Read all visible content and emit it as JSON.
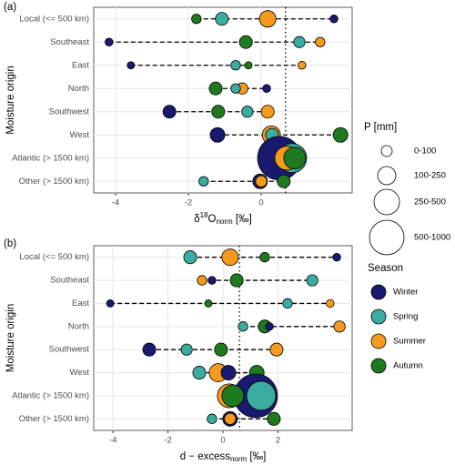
{
  "chart_data": [
    {
      "type": "dot",
      "panel": "(a)",
      "y_label": "Moisture origin",
      "x_label": {
        "prefix": "δ",
        "sup": "18",
        "main": "O",
        "sub": "norm",
        "suffix": " [‰]"
      },
      "categories": [
        "Local (<= 500 km)",
        "Southeast",
        "East",
        "North",
        "Southwest",
        "West",
        "Atlantic (> 1500 km)",
        "Other (> 1500 km)"
      ],
      "xlim": [
        -4.6,
        2.5
      ],
      "xticks": [
        -4,
        -2,
        0
      ],
      "vline": 0.67,
      "grid": true,
      "series": [
        {
          "name": "Winter",
          "color": "#191970",
          "values": [
            2.0,
            -4.18,
            -3.58,
            0.15,
            -2.52,
            -1.2,
            0.5,
            -0.03
          ],
          "sizes": [
            5,
            5,
            3,
            5,
            50,
            75,
            1300,
            75
          ]
        },
        {
          "name": "Spring",
          "color": "#3aada0",
          "values": [
            -1.08,
            1.05,
            -0.7,
            -0.7,
            -0.38,
            0.3,
            0.85,
            -1.58
          ],
          "sizes": [
            50,
            30,
            15,
            15,
            30,
            50,
            500,
            15
          ]
        },
        {
          "name": "Summer",
          "color": "#f59a1f",
          "values": [
            0.18,
            1.62,
            1.12,
            -0.52,
            0.18,
            0.28,
            0.7,
            0.0
          ],
          "sizes": [
            110,
            15,
            5,
            30,
            50,
            145,
            300,
            30
          ]
        },
        {
          "name": "Autumn",
          "color": "#1f7a1f",
          "values": [
            -1.78,
            -0.42,
            -0.35,
            -1.25,
            -1.18,
            2.18,
            0.92,
            0.62
          ],
          "sizes": [
            15,
            50,
            3,
            50,
            50,
            75,
            240,
            50
          ]
        }
      ],
      "size_legend": {
        "title": "P [mm]",
        "labels": [
          "0-100",
          "100-250",
          "250-500",
          "500-1000"
        ]
      }
    },
    {
      "type": "dot",
      "panel": "(b)",
      "y_label": "Moisture origin",
      "x_label": {
        "main": "d − excess",
        "sub": "norm",
        "suffix": " [‰]"
      },
      "categories": [
        "Local (<= 500 km)",
        "Southeast",
        "East",
        "North",
        "Southwest",
        "West",
        "Atlantic (> 1500 km)",
        "Other (> 1500 km)"
      ],
      "xlim": [
        -4.7,
        4.7
      ],
      "xticks": [
        -4,
        -2,
        0,
        2
      ],
      "vline": 0.6,
      "grid": true,
      "series": [
        {
          "name": "Winter",
          "color": "#191970",
          "values": [
            4.14,
            -0.4,
            -4.1,
            1.69,
            -2.68,
            0.2,
            1.19,
            0.26
          ],
          "sizes": [
            5,
            5,
            3,
            5,
            50,
            75,
            1300,
            75
          ]
        },
        {
          "name": "Spring",
          "color": "#3aada0",
          "values": [
            -1.19,
            3.25,
            2.35,
            0.73,
            -1.32,
            -0.86,
            1.39,
            -0.4
          ],
          "sizes": [
            50,
            30,
            15,
            15,
            30,
            50,
            500,
            15
          ]
        },
        {
          "name": "Summer",
          "color": "#f59a1f",
          "values": [
            0.26,
            -0.76,
            3.9,
            4.24,
            1.95,
            -0.17,
            0.23,
            0.26
          ],
          "sizes": [
            110,
            15,
            5,
            30,
            50,
            145,
            300,
            30
          ]
        },
        {
          "name": "Autumn",
          "color": "#1f7a1f",
          "values": [
            1.52,
            0.5,
            -0.53,
            1.52,
            -0.07,
            1.23,
            0.36,
            1.85
          ],
          "sizes": [
            15,
            50,
            3,
            50,
            50,
            75,
            240,
            50
          ]
        }
      ],
      "legend_title": "Season"
    }
  ]
}
